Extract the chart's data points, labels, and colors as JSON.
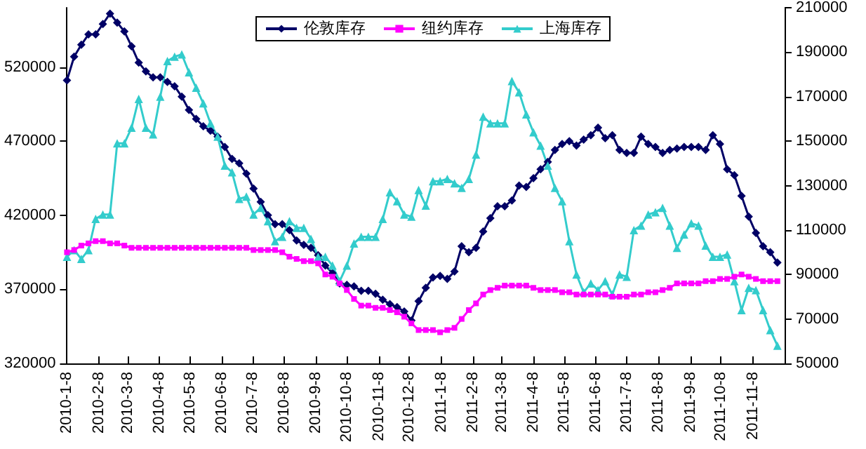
{
  "chart_data": {
    "type": "line",
    "x": [
      "2010-01-08",
      "2010-01-15",
      "2010-01-22",
      "2010-01-29",
      "2010-02-05",
      "2010-02-12",
      "2010-02-19",
      "2010-02-26",
      "2010-03-05",
      "2010-03-12",
      "2010-03-19",
      "2010-03-26",
      "2010-04-02",
      "2010-04-09",
      "2010-04-16",
      "2010-04-23",
      "2010-04-30",
      "2010-05-07",
      "2010-05-14",
      "2010-05-21",
      "2010-05-28",
      "2010-06-04",
      "2010-06-11",
      "2010-06-18",
      "2010-06-25",
      "2010-07-02",
      "2010-07-09",
      "2010-07-16",
      "2010-07-23",
      "2010-07-30",
      "2010-08-06",
      "2010-08-13",
      "2010-08-20",
      "2010-08-27",
      "2010-09-03",
      "2010-09-10",
      "2010-09-17",
      "2010-09-24",
      "2010-10-01",
      "2010-10-08",
      "2010-10-15",
      "2010-10-22",
      "2010-10-29",
      "2010-11-05",
      "2010-11-12",
      "2010-11-19",
      "2010-11-26",
      "2010-12-03",
      "2010-12-10",
      "2010-12-17",
      "2010-12-24",
      "2010-12-31",
      "2011-01-07",
      "2011-01-14",
      "2011-01-21",
      "2011-01-28",
      "2011-02-04",
      "2011-02-11",
      "2011-02-18",
      "2011-02-25",
      "2011-03-04",
      "2011-03-11",
      "2011-03-18",
      "2011-03-25",
      "2011-04-01",
      "2011-04-08",
      "2011-04-15",
      "2011-04-22",
      "2011-04-29",
      "2011-05-06",
      "2011-05-13",
      "2011-05-20",
      "2011-05-27",
      "2011-06-03",
      "2011-06-10",
      "2011-06-17",
      "2011-06-24",
      "2011-07-01",
      "2011-07-08",
      "2011-07-15",
      "2011-07-22",
      "2011-07-29",
      "2011-08-05",
      "2011-08-12",
      "2011-08-19",
      "2011-08-26",
      "2011-09-02",
      "2011-09-09",
      "2011-09-16",
      "2011-09-23",
      "2011-09-30",
      "2011-10-07",
      "2011-10-14",
      "2011-10-21",
      "2011-10-28",
      "2011-11-04",
      "2011-11-11",
      "2011-11-18",
      "2011-11-25",
      "2011-12-02"
    ],
    "xlim": [
      "2010-01-08",
      "2011-12-09"
    ],
    "xticks": [
      {
        "value": "2010-01-08",
        "label": "2010-1-8"
      },
      {
        "value": "2010-02-08",
        "label": "2010-2-8"
      },
      {
        "value": "2010-03-08",
        "label": "2010-3-8"
      },
      {
        "value": "2010-04-08",
        "label": "2010-4-8"
      },
      {
        "value": "2010-05-08",
        "label": "2010-5-8"
      },
      {
        "value": "2010-06-08",
        "label": "2010-6-8"
      },
      {
        "value": "2010-07-08",
        "label": "2010-7-8"
      },
      {
        "value": "2010-08-08",
        "label": "2010-8-8"
      },
      {
        "value": "2010-09-08",
        "label": "2010-9-8"
      },
      {
        "value": "2010-10-08",
        "label": "2010-10-8"
      },
      {
        "value": "2010-11-08",
        "label": "2010-11-8"
      },
      {
        "value": "2010-12-08",
        "label": "2010-12-8"
      },
      {
        "value": "2011-01-08",
        "label": "2011-1-8"
      },
      {
        "value": "2011-02-08",
        "label": "2011-2-8"
      },
      {
        "value": "2011-03-08",
        "label": "2011-3-8"
      },
      {
        "value": "2011-04-08",
        "label": "2011-4-8"
      },
      {
        "value": "2011-05-08",
        "label": "2011-5-8"
      },
      {
        "value": "2011-06-08",
        "label": "2011-6-8"
      },
      {
        "value": "2011-07-08",
        "label": "2011-7-8"
      },
      {
        "value": "2011-08-08",
        "label": "2011-8-8"
      },
      {
        "value": "2011-09-08",
        "label": "2011-9-8"
      },
      {
        "value": "2011-10-08",
        "label": "2011-10-8"
      },
      {
        "value": "2011-11-08",
        "label": "2011-11-8"
      }
    ],
    "ylim": [
      320000,
      560000
    ],
    "yticks": [
      320000,
      370000,
      420000,
      470000,
      520000
    ],
    "y2lim": [
      50000,
      210000
    ],
    "y2ticks": [
      50000,
      70000,
      90000,
      110000,
      130000,
      150000,
      170000,
      190000,
      210000
    ],
    "legend": "top",
    "grid": false,
    "line_style": "solid",
    "series": [
      {
        "name": "伦敦库存",
        "color": "#000066",
        "marker": "diamond",
        "values": [
          511000,
          527000,
          535000,
          542000,
          542000,
          549000,
          556000,
          550000,
          544000,
          534000,
          523000,
          517000,
          513000,
          513000,
          510000,
          507000,
          500000,
          491000,
          485000,
          480000,
          477000,
          473000,
          466000,
          458000,
          455000,
          448000,
          438000,
          429000,
          420000,
          414000,
          414000,
          410000,
          403000,
          400000,
          398000,
          393000,
          386000,
          381000,
          374000,
          373000,
          372000,
          369000,
          369000,
          367000,
          363000,
          360000,
          358000,
          355000,
          349000,
          362000,
          371000,
          378000,
          379000,
          377000,
          382000,
          399000,
          395000,
          398000,
          409000,
          418000,
          426000,
          426000,
          430000,
          440000,
          439000,
          445000,
          451000,
          456000,
          464000,
          468000,
          470000,
          467000,
          471000,
          474000,
          479000,
          472000,
          474000,
          464000,
          462000,
          462000,
          473000,
          468000,
          466000,
          462000,
          464000,
          465000,
          466000,
          466000,
          466000,
          464000,
          474000,
          468000,
          451000,
          447000,
          433000,
          419000,
          408000,
          399000,
          395000,
          388000
        ]
      },
      {
        "name": "纽约库存",
        "color": "#ff00ff",
        "marker": "square",
        "axis": "y2",
        "values": [
          100000,
          101000,
          103000,
          104000,
          105000,
          105000,
          104000,
          104000,
          103000,
          102000,
          102000,
          102000,
          102000,
          102000,
          102000,
          102000,
          102000,
          102000,
          102000,
          102000,
          102000,
          102000,
          102000,
          102000,
          102000,
          102000,
          101000,
          101000,
          101000,
          101000,
          100000,
          98000,
          97000,
          96000,
          96000,
          95000,
          90000,
          89000,
          86000,
          83000,
          79000,
          76000,
          76000,
          75000,
          75000,
          74000,
          73000,
          71000,
          68000,
          65000,
          65000,
          65000,
          64000,
          65000,
          66000,
          70000,
          74000,
          77000,
          81000,
          83000,
          84000,
          85000,
          85000,
          85000,
          85000,
          84000,
          83000,
          83000,
          83000,
          82000,
          82000,
          81000,
          81000,
          81000,
          81000,
          81000,
          80000,
          80000,
          80000,
          81000,
          81000,
          82000,
          82000,
          83000,
          84000,
          86000,
          86000,
          86000,
          86000,
          87000,
          87000,
          88000,
          88000,
          89000,
          90000,
          89000,
          88000,
          87000,
          87000,
          87000
        ]
      },
      {
        "name": "上海库存",
        "color": "#33cccc",
        "marker": "triangle",
        "axis": "y2",
        "values": [
          98000,
          101000,
          97000,
          101000,
          115000,
          117000,
          117000,
          149000,
          149000,
          156000,
          169000,
          156000,
          153000,
          170000,
          186000,
          188000,
          189000,
          181000,
          174000,
          167000,
          158000,
          152000,
          139000,
          136000,
          124000,
          125000,
          117000,
          120000,
          114000,
          105000,
          107000,
          114000,
          111000,
          111000,
          106000,
          98000,
          98000,
          94000,
          87000,
          94000,
          104000,
          107000,
          107000,
          107000,
          115000,
          127000,
          123000,
          117000,
          116000,
          128000,
          121000,
          132000,
          132000,
          133000,
          131000,
          129000,
          133000,
          144000,
          161000,
          158000,
          158000,
          158000,
          177000,
          172000,
          162000,
          154000,
          148000,
          139000,
          129000,
          123000,
          105000,
          90000,
          82000,
          86000,
          83000,
          87000,
          81000,
          90000,
          89000,
          110000,
          112000,
          117000,
          118000,
          120000,
          112000,
          102000,
          108000,
          113000,
          112000,
          103000,
          98000,
          98000,
          99000,
          87000,
          74000,
          84000,
          83000,
          74000,
          65000,
          58000
        ]
      }
    ]
  }
}
